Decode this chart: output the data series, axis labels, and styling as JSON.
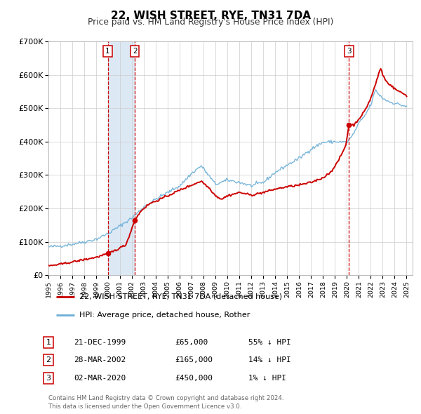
{
  "title": "22, WISH STREET, RYE, TN31 7DA",
  "subtitle": "Price paid vs. HM Land Registry's House Price Index (HPI)",
  "legend_line1": "22, WISH STREET, RYE, TN31 7DA (detached house)",
  "legend_line2": "HPI: Average price, detached house, Rother",
  "transactions": [
    {
      "num": 1,
      "date": "21-DEC-1999",
      "date_x": 1999.97,
      "price": 65000,
      "label": "55% ↓ HPI"
    },
    {
      "num": 2,
      "date": "28-MAR-2002",
      "date_x": 2002.24,
      "price": 165000,
      "label": "14% ↓ HPI"
    },
    {
      "num": 3,
      "date": "02-MAR-2020",
      "date_x": 2020.17,
      "price": 450000,
      "label": "1% ↓ HPI"
    }
  ],
  "hpi_color": "#6baed6",
  "price_color": "#cc0000",
  "marker_color": "#cc0000",
  "vline_color": "#cc0000",
  "shade_color": "#dce9f5",
  "background_color": "#ffffff",
  "grid_color": "#cccccc",
  "footer_text": "Contains HM Land Registry data © Crown copyright and database right 2024.\nThis data is licensed under the Open Government Licence v3.0.",
  "ylim": [
    0,
    700000
  ],
  "xlim_start": 1995.0,
  "xlim_end": 2025.5,
  "hpi_anchors": [
    [
      1995.0,
      85000
    ],
    [
      1996.0,
      88000
    ],
    [
      1997.0,
      93000
    ],
    [
      1998.0,
      100000
    ],
    [
      1999.0,
      108000
    ],
    [
      2000.0,
      125000
    ],
    [
      2001.0,
      148000
    ],
    [
      2002.0,
      172000
    ],
    [
      2002.5,
      188000
    ],
    [
      2003.0,
      205000
    ],
    [
      2004.0,
      228000
    ],
    [
      2005.0,
      248000
    ],
    [
      2006.0,
      268000
    ],
    [
      2007.0,
      305000
    ],
    [
      2007.8,
      328000
    ],
    [
      2008.5,
      295000
    ],
    [
      2009.0,
      272000
    ],
    [
      2010.0,
      285000
    ],
    [
      2011.0,
      278000
    ],
    [
      2012.0,
      268000
    ],
    [
      2013.0,
      278000
    ],
    [
      2014.0,
      308000
    ],
    [
      2015.0,
      330000
    ],
    [
      2016.0,
      350000
    ],
    [
      2017.0,
      378000
    ],
    [
      2018.0,
      398000
    ],
    [
      2019.0,
      400000
    ],
    [
      2020.0,
      398000
    ],
    [
      2020.5,
      420000
    ],
    [
      2021.0,
      455000
    ],
    [
      2021.5,
      478000
    ],
    [
      2022.0,
      510000
    ],
    [
      2022.4,
      555000
    ],
    [
      2022.7,
      540000
    ],
    [
      2023.0,
      530000
    ],
    [
      2023.5,
      520000
    ],
    [
      2024.0,
      515000
    ],
    [
      2024.5,
      510000
    ],
    [
      2025.0,
      505000
    ]
  ],
  "price_anchors": [
    [
      1995.0,
      28000
    ],
    [
      1996.0,
      33000
    ],
    [
      1997.0,
      40000
    ],
    [
      1998.0,
      47000
    ],
    [
      1999.0,
      54000
    ],
    [
      1999.97,
      65000
    ],
    [
      2000.5,
      73000
    ],
    [
      2001.0,
      82000
    ],
    [
      2001.5,
      92000
    ],
    [
      2002.24,
      165000
    ],
    [
      2002.8,
      195000
    ],
    [
      2003.5,
      215000
    ],
    [
      2004.0,
      222000
    ],
    [
      2005.0,
      238000
    ],
    [
      2006.0,
      255000
    ],
    [
      2007.0,
      270000
    ],
    [
      2007.8,
      282000
    ],
    [
      2008.5,
      260000
    ],
    [
      2009.0,
      238000
    ],
    [
      2009.5,
      228000
    ],
    [
      2010.0,
      238000
    ],
    [
      2011.0,
      248000
    ],
    [
      2012.0,
      240000
    ],
    [
      2013.0,
      248000
    ],
    [
      2014.0,
      258000
    ],
    [
      2015.0,
      265000
    ],
    [
      2016.0,
      270000
    ],
    [
      2017.0,
      278000
    ],
    [
      2018.0,
      292000
    ],
    [
      2018.5,
      305000
    ],
    [
      2019.0,
      325000
    ],
    [
      2019.5,
      358000
    ],
    [
      2019.9,
      388000
    ],
    [
      2020.17,
      450000
    ],
    [
      2020.6,
      450000
    ],
    [
      2021.0,
      468000
    ],
    [
      2021.5,
      492000
    ],
    [
      2022.0,
      530000
    ],
    [
      2022.4,
      572000
    ],
    [
      2022.7,
      608000
    ],
    [
      2022.85,
      620000
    ],
    [
      2023.0,
      600000
    ],
    [
      2023.3,
      580000
    ],
    [
      2023.7,
      568000
    ],
    [
      2024.0,
      558000
    ],
    [
      2024.5,
      548000
    ],
    [
      2025.0,
      538000
    ]
  ]
}
